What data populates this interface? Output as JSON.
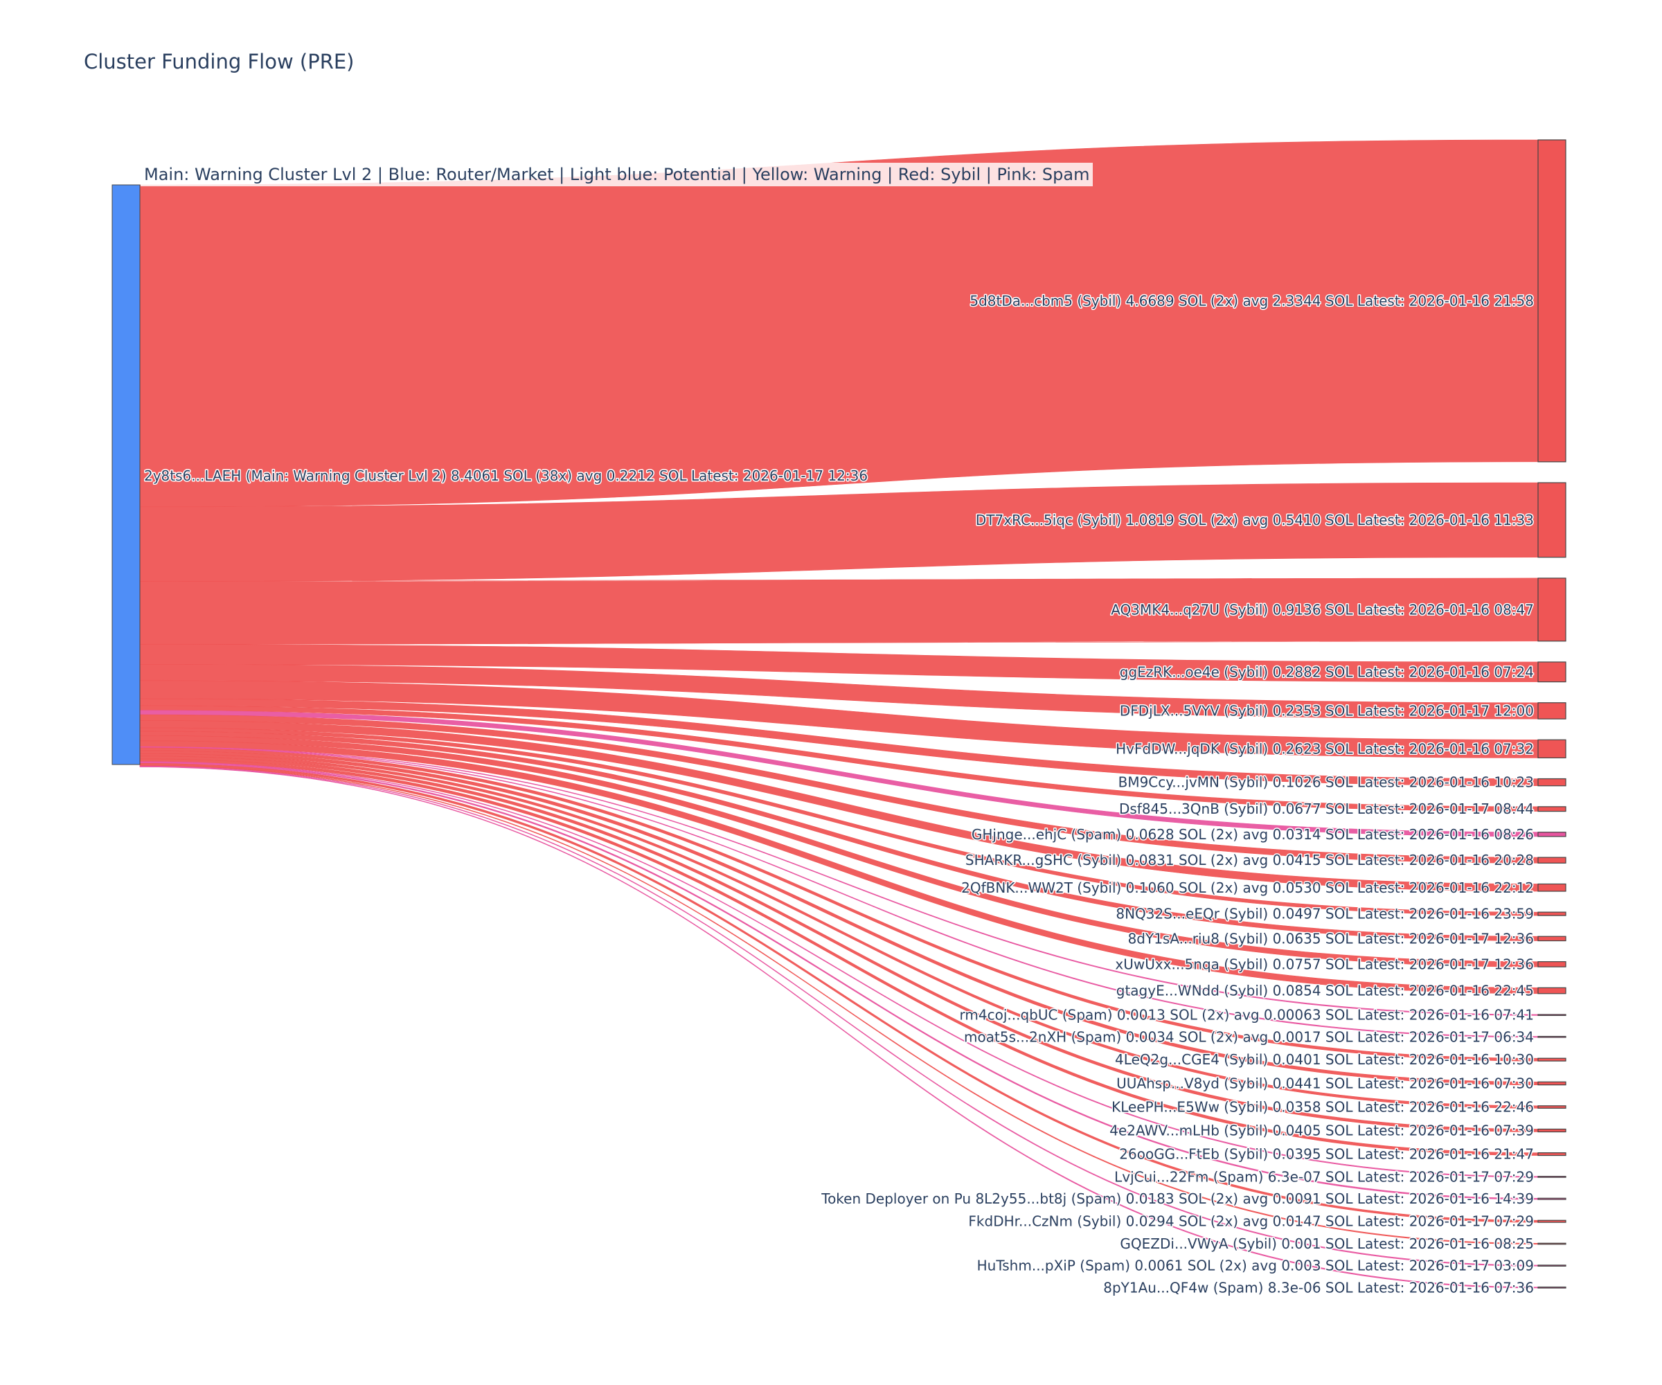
{
  "title": "Cluster Funding Flow (PRE)",
  "legend_note": "Main: Warning Cluster Lvl 2  |  Blue: Router/Market | Light blue: Potential | Yellow: Warning | Red: Sybil | Pink: Spam",
  "colors": {
    "source_node": "#4f8ef7",
    "Sybil": "#ef5555",
    "Spam": "#e8559f",
    "node_border": "#444444"
  },
  "chart_data": {
    "type": "sankey",
    "source": {
      "label": "2y8ts6...LAEH (Main: Warning Cluster Lvl 2) 8.4061 SOL (38x) avg 0.2212 SOL Latest: 2026-01-17 12:36",
      "value": 8.4061
    },
    "targets": [
      {
        "label": "5d8tDa...cbm5 (Sybil) 4.6689 SOL (2x) avg 2.3344 SOL Latest: 2026-01-16 21:58",
        "value": 4.6689,
        "category": "Sybil"
      },
      {
        "label": "DT7xRC...5iqc (Sybil) 1.0819 SOL (2x) avg 0.5410 SOL Latest: 2026-01-16 11:33",
        "value": 1.0819,
        "category": "Sybil"
      },
      {
        "label": "AQ3MK4...q27U (Sybil) 0.9136 SOL Latest: 2026-01-16 08:47",
        "value": 0.9136,
        "category": "Sybil"
      },
      {
        "label": "ggEzRK...oe4e (Sybil) 0.2882 SOL Latest: 2026-01-16 07:24",
        "value": 0.2882,
        "category": "Sybil"
      },
      {
        "label": "DFDjLX...5VYV (Sybil) 0.2353 SOL Latest: 2026-01-17 12:00",
        "value": 0.2353,
        "category": "Sybil"
      },
      {
        "label": "HvFdDW...jqDK (Sybil) 0.2623 SOL Latest: 2026-01-16 07:32",
        "value": 0.2623,
        "category": "Sybil"
      },
      {
        "label": "BM9Ccy...jvMN (Sybil) 0.1026 SOL Latest: 2026-01-16 10:23",
        "value": 0.1026,
        "category": "Sybil"
      },
      {
        "label": "Dsf845...3QnB (Sybil) 0.0677 SOL Latest: 2026-01-17 08:44",
        "value": 0.0677,
        "category": "Sybil"
      },
      {
        "label": "GHjnge...ehjC (Spam) 0.0628 SOL (2x) avg 0.0314 SOL Latest: 2026-01-16 08:26",
        "value": 0.0628,
        "category": "Spam"
      },
      {
        "label": "SHARKR...gSHC (Sybil) 0.0831 SOL (2x) avg 0.0415 SOL Latest: 2026-01-16 20:28",
        "value": 0.0831,
        "category": "Sybil"
      },
      {
        "label": "2QfBNK...WW2T (Sybil) 0.1060 SOL (2x) avg 0.0530 SOL Latest: 2026-01-16 22:12",
        "value": 0.106,
        "category": "Sybil"
      },
      {
        "label": "8NQ32S...eEQr (Sybil) 0.0497 SOL Latest: 2026-01-16 23:59",
        "value": 0.0497,
        "category": "Sybil"
      },
      {
        "label": "8dY1sA...riu8 (Sybil) 0.0635 SOL Latest: 2026-01-17 12:36",
        "value": 0.0635,
        "category": "Sybil"
      },
      {
        "label": "xUwUxx...5nqa (Sybil) 0.0757 SOL Latest: 2026-01-17 12:36",
        "value": 0.0757,
        "category": "Sybil"
      },
      {
        "label": "gtagyE...WNdd (Sybil) 0.0854 SOL Latest: 2026-01-16 22:45",
        "value": 0.0854,
        "category": "Sybil"
      },
      {
        "label": "rm4coj...qbUC (Spam) 0.0013 SOL (2x) avg 0.00063 SOL Latest: 2026-01-16 07:41",
        "value": 0.0013,
        "category": "Spam"
      },
      {
        "label": "moat5s...2nXH (Spam) 0.0034 SOL (2x) avg 0.0017 SOL Latest: 2026-01-17 06:34",
        "value": 0.0034,
        "category": "Spam"
      },
      {
        "label": "4LeQ2g...CGE4 (Sybil) 0.0401 SOL Latest: 2026-01-16 10:30",
        "value": 0.0401,
        "category": "Sybil"
      },
      {
        "label": "UUAhsp...V8yd (Sybil) 0.0441 SOL Latest: 2026-01-16 07:30",
        "value": 0.0441,
        "category": "Sybil"
      },
      {
        "label": "KLeePH...E5Ww (Sybil) 0.0358 SOL Latest: 2026-01-16 22:46",
        "value": 0.0358,
        "category": "Sybil"
      },
      {
        "label": "4e2AWV...mLHb (Sybil) 0.0405 SOL Latest: 2026-01-16 07:39",
        "value": 0.0405,
        "category": "Sybil"
      },
      {
        "label": "26ooGG...FtEb (Sybil) 0.0395 SOL Latest: 2026-01-16 21:47",
        "value": 0.0395,
        "category": "Sybil"
      },
      {
        "label": "LvjCui...22Fm (Spam) 6.3e-07 SOL Latest: 2026-01-17 07:29",
        "value": 6.3e-07,
        "category": "Spam"
      },
      {
        "label": "Token Deployer on Pu 8L2y55...bt8j (Spam) 0.0183 SOL (2x) avg 0.0091 SOL Latest: 2026-01-16 14:39",
        "value": 0.0183,
        "category": "Spam"
      },
      {
        "label": "FkdDHr...CzNm (Sybil) 0.0294 SOL (2x) avg 0.0147 SOL Latest: 2026-01-17 07:29",
        "value": 0.0294,
        "category": "Sybil"
      },
      {
        "label": "GQEZDi...VWyA (Sybil) 0.001 SOL Latest: 2026-01-16 08:25",
        "value": 0.001,
        "category": "Sybil"
      },
      {
        "label": "HuTshm...pXiP (Spam) 0.0061 SOL (2x) avg 0.003 SOL Latest: 2026-01-17 03:09",
        "value": 0.0061,
        "category": "Spam"
      },
      {
        "label": "8pY1Au...QF4w (Spam) 8.3e-06 SOL Latest: 2026-01-16 07:36",
        "value": 8.3e-06,
        "category": "Spam"
      }
    ]
  }
}
